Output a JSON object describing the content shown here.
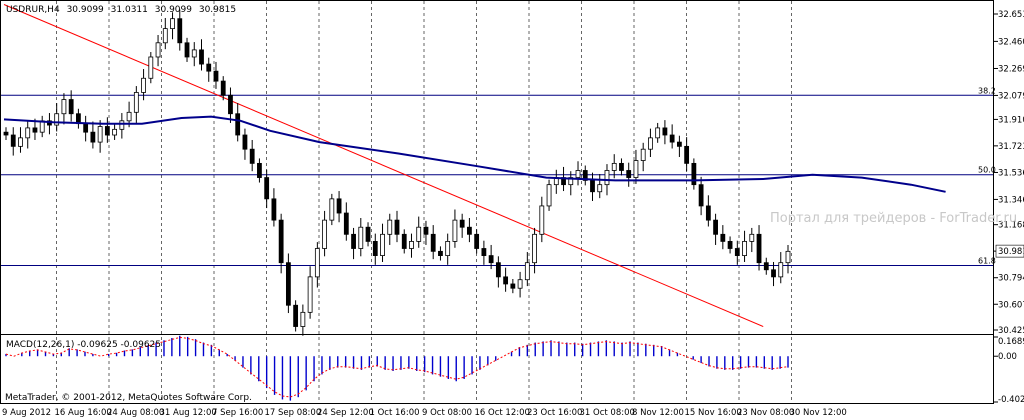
{
  "chart_data": {
    "type": "candlestick",
    "symbol_header": {
      "symbol": "USDRUR,H4",
      "open": "30.9099",
      "high": "31.0311",
      "low": "30.9099",
      "close": "30.9815"
    },
    "current_price_label": "30.9815",
    "price_axis": {
      "ticks": [
        "32.6530",
        "32.4600",
        "32.2690",
        "32.0790",
        "31.9100",
        "31.7235",
        "31.5360",
        "31.3460",
        "31.1680",
        "30.9815",
        "30.7940",
        "30.6070",
        "30.4255"
      ],
      "range": [
        30.4255,
        32.653
      ]
    },
    "time_axis_labels": [
      "9 Aug 2012",
      "16 Aug 16:00",
      "24 Aug 08:00",
      "31 Aug 12:00",
      "7 Sep 16:00",
      "17 Sep 08:00",
      "24 Sep 12:00",
      "1 Oct 16:00",
      "9 Oct 08:00",
      "16 Oct 12:00",
      "23 Oct 16:00",
      "31 Oct 08:00",
      "8 Nov 12:00",
      "15 Nov 16:00",
      "23 Nov 08:00",
      "30 Nov 12:00"
    ],
    "fibonacci_levels": [
      {
        "label": "38.2",
        "price": 32.08
      },
      {
        "label": "50.0",
        "price": 31.52
      },
      {
        "label": "61.8",
        "price": 30.88
      }
    ],
    "price_series": [
      31.8,
      31.72,
      31.78,
      31.85,
      31.82,
      31.9,
      31.87,
      31.95,
      32.05,
      31.95,
      31.88,
      31.82,
      31.75,
      31.86,
      31.8,
      31.84,
      31.9,
      31.96,
      32.1,
      32.2,
      32.35,
      32.45,
      32.55,
      32.62,
      32.45,
      32.35,
      32.4,
      32.3,
      32.25,
      32.18,
      32.08,
      31.95,
      31.8,
      31.7,
      31.6,
      31.5,
      31.35,
      31.2,
      30.9,
      30.6,
      30.45,
      30.55,
      30.8,
      31.0,
      31.2,
      31.35,
      31.25,
      31.1,
      31.0,
      31.15,
      31.05,
      30.95,
      31.1,
      31.2,
      31.1,
      31.0,
      31.05,
      31.15,
      31.1,
      30.98,
      30.95,
      31.05,
      31.2,
      31.15,
      31.1,
      31.0,
      30.95,
      30.9,
      30.8,
      30.75,
      30.72,
      30.78,
      30.9,
      31.1,
      31.3,
      31.45,
      31.5,
      31.45,
      31.5,
      31.55,
      31.48,
      31.4,
      31.45,
      31.55,
      31.6,
      31.55,
      31.5,
      31.62,
      31.7,
      31.78,
      31.85,
      31.8,
      31.75,
      31.72,
      31.6,
      31.45,
      31.3,
      31.2,
      31.1,
      31.05,
      31.0,
      30.95,
      31.05,
      31.1,
      30.9,
      30.85,
      30.8,
      30.9,
      30.98
    ],
    "moving_average": [
      {
        "t": 0.0,
        "p": 31.91
      },
      {
        "t": 0.05,
        "p": 31.89
      },
      {
        "t": 0.1,
        "p": 31.88
      },
      {
        "t": 0.14,
        "p": 31.88
      },
      {
        "t": 0.18,
        "p": 31.92
      },
      {
        "t": 0.21,
        "p": 31.93
      },
      {
        "t": 0.24,
        "p": 31.9
      },
      {
        "t": 0.27,
        "p": 31.83
      },
      {
        "t": 0.32,
        "p": 31.75
      },
      {
        "t": 0.4,
        "p": 31.67
      },
      {
        "t": 0.48,
        "p": 31.58
      },
      {
        "t": 0.55,
        "p": 31.5
      },
      {
        "t": 0.62,
        "p": 31.48
      },
      {
        "t": 0.7,
        "p": 31.48
      },
      {
        "t": 0.77,
        "p": 31.49
      },
      {
        "t": 0.82,
        "p": 31.52
      },
      {
        "t": 0.87,
        "p": 31.5
      },
      {
        "t": 0.92,
        "p": 31.45
      },
      {
        "t": 0.955,
        "p": 31.4
      }
    ],
    "trendline": {
      "start": {
        "t": 0.0,
        "p": 32.72
      },
      "end": {
        "t": 0.77,
        "p": 30.45
      }
    },
    "macd_panel": {
      "label": "MACD(12,26,1) -0.09625 -0.09625",
      "axis_ticks": [
        "0.16891",
        "0.00",
        "-0.40234"
      ],
      "range": [
        -0.40234,
        0.16891
      ],
      "values": [
        0.02,
        0.0,
        0.03,
        0.05,
        0.06,
        0.04,
        0.02,
        0.03,
        0.07,
        0.06,
        0.04,
        0.02,
        0.0,
        0.02,
        0.03,
        0.05,
        0.06,
        0.08,
        0.1,
        0.12,
        0.14,
        0.16,
        0.18,
        0.17,
        0.15,
        0.12,
        0.1,
        0.06,
        0.02,
        -0.04,
        -0.1,
        -0.16,
        -0.22,
        -0.28,
        -0.34,
        -0.38,
        -0.39,
        -0.36,
        -0.3,
        -0.22,
        -0.16,
        -0.12,
        -0.1,
        -0.1,
        -0.11,
        -0.12,
        -0.1,
        -0.09,
        -0.12,
        -0.13,
        -0.12,
        -0.11,
        -0.13,
        -0.14,
        -0.16,
        -0.18,
        -0.2,
        -0.22,
        -0.2,
        -0.16,
        -0.12,
        -0.08,
        -0.04,
        0.0,
        0.04,
        0.08,
        0.1,
        0.12,
        0.13,
        0.14,
        0.13,
        0.12,
        0.12,
        0.11,
        0.12,
        0.13,
        0.14,
        0.13,
        0.12,
        0.13,
        0.12,
        0.11,
        0.1,
        0.09,
        0.06,
        0.03,
        0.0,
        -0.03,
        -0.06,
        -0.09,
        -0.11,
        -0.12,
        -0.12,
        -0.11,
        -0.1,
        -0.1,
        -0.11,
        -0.12,
        -0.11,
        -0.1
      ]
    },
    "colors": {
      "candle_up": "#000000",
      "candle_down": "#000000",
      "moving_average": "#00008b",
      "trendline": "#ff0000",
      "fibo_line": "#000080",
      "macd_hist": "#0000cd",
      "macd_signal": "#ff0000",
      "grid": "#000000"
    }
  },
  "footer": {
    "copyright": "MetaTrader, © 2001-2012, MetaQuotes Software Corp."
  },
  "watermark": "Портал для трейдеров - ForTrader.ru"
}
